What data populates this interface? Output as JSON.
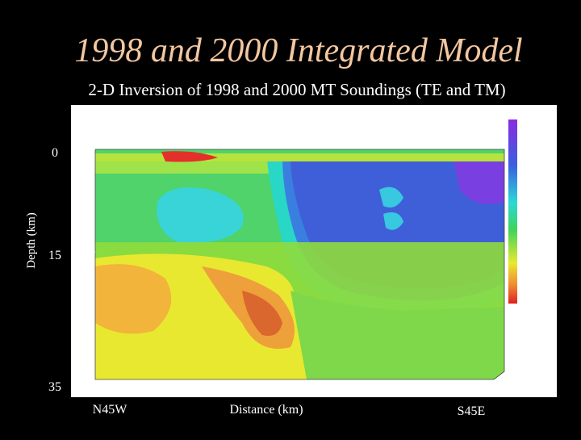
{
  "slide": {
    "title": "1998 and 2000 Integrated Model",
    "subtitle": "2-D Inversion of 1998 and 2000 MT Soundings (TE and TM)",
    "y_axis_label": "Depth (km)",
    "depth_labels": [
      "0",
      "15",
      "35"
    ],
    "bottom_labels": [
      "N45W",
      "Distance (km)",
      "S45E"
    ]
  }
}
